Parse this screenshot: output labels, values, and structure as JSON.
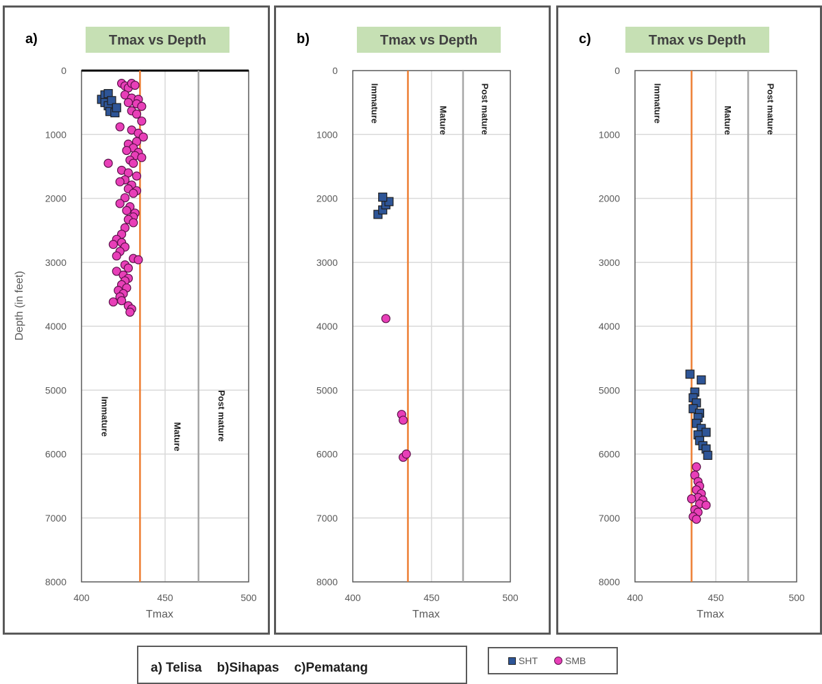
{
  "colors": {
    "sht": "#2e5597",
    "smb": "#e83fb8",
    "threshold": "#ed7d31",
    "post_mature_line": "#a6a6a6",
    "grid": "#d9d9d9",
    "title_bg": "#c6e0b4"
  },
  "legend": {
    "items": [
      {
        "label": "SHT",
        "marker": "square",
        "color": "#2e5597"
      },
      {
        "label": "SMB",
        "marker": "circle",
        "color": "#e83fb8"
      }
    ]
  },
  "formations": {
    "a": "a) Telisa",
    "b": "b)Sihapas",
    "c": "c)Pematang"
  },
  "chart_data": [
    {
      "panel_label": "a)",
      "type": "scatter",
      "title": "Tmax vs Depth",
      "xlabel": "Tmax",
      "ylabel": "Depth (in feet)",
      "xlim": [
        400,
        500
      ],
      "ylim": [
        0,
        8000
      ],
      "y_inverted": true,
      "x_ticks": [
        "400",
        "450",
        "500"
      ],
      "y_ticks": [
        "0",
        "1000",
        "2000",
        "3000",
        "4000",
        "5000",
        "6000",
        "7000",
        "8000"
      ],
      "grid": true,
      "reference_lines": [
        {
          "x": 435,
          "style": "orange"
        },
        {
          "x": 470,
          "style": "gray"
        }
      ],
      "zone_labels": [
        "Immature",
        "Mature",
        "Post mature"
      ],
      "zone_label_position": "bottom",
      "series": [
        {
          "name": "SHT",
          "marker": "square",
          "points": [
            [
              412,
              450
            ],
            [
              414,
              380
            ],
            [
              414,
              500
            ],
            [
              416,
              360
            ],
            [
              416,
              550
            ],
            [
              417,
              640
            ],
            [
              418,
              470
            ],
            [
              420,
              660
            ],
            [
              421,
              580
            ]
          ]
        },
        {
          "name": "SMB",
          "marker": "circle",
          "points": [
            [
              424,
              200
            ],
            [
              426,
              240
            ],
            [
              428,
              270
            ],
            [
              430,
              200
            ],
            [
              432,
              230
            ],
            [
              426,
              380
            ],
            [
              430,
              430
            ],
            [
              434,
              450
            ],
            [
              428,
              500
            ],
            [
              433,
              520
            ],
            [
              436,
              560
            ],
            [
              430,
              630
            ],
            [
              433,
              680
            ],
            [
              436,
              790
            ],
            [
              423,
              880
            ],
            [
              430,
              930
            ],
            [
              434,
              980
            ],
            [
              437,
              1040
            ],
            [
              433,
              1110
            ],
            [
              428,
              1150
            ],
            [
              431,
              1210
            ],
            [
              427,
              1250
            ],
            [
              434,
              1280
            ],
            [
              432,
              1330
            ],
            [
              436,
              1360
            ],
            [
              429,
              1400
            ],
            [
              431,
              1450
            ],
            [
              416,
              1450
            ],
            [
              424,
              1560
            ],
            [
              428,
              1600
            ],
            [
              433,
              1650
            ],
            [
              426,
              1710
            ],
            [
              423,
              1740
            ],
            [
              430,
              1790
            ],
            [
              428,
              1850
            ],
            [
              433,
              1880
            ],
            [
              431,
              1920
            ],
            [
              426,
              1990
            ],
            [
              423,
              2080
            ],
            [
              429,
              2130
            ],
            [
              427,
              2190
            ],
            [
              432,
              2230
            ],
            [
              431,
              2290
            ],
            [
              428,
              2330
            ],
            [
              431,
              2380
            ],
            [
              426,
              2460
            ],
            [
              424,
              2560
            ],
            [
              421,
              2640
            ],
            [
              424,
              2690
            ],
            [
              419,
              2720
            ],
            [
              426,
              2760
            ],
            [
              423,
              2830
            ],
            [
              421,
              2900
            ],
            [
              431,
              2940
            ],
            [
              434,
              2960
            ],
            [
              426,
              3040
            ],
            [
              428,
              3090
            ],
            [
              421,
              3140
            ],
            [
              425,
              3200
            ],
            [
              428,
              3250
            ],
            [
              426,
              3290
            ],
            [
              424,
              3350
            ],
            [
              427,
              3400
            ],
            [
              422,
              3440
            ],
            [
              425,
              3490
            ],
            [
              423,
              3540
            ],
            [
              419,
              3620
            ],
            [
              424,
              3600
            ],
            [
              428,
              3680
            ],
            [
              430,
              3730
            ],
            [
              429,
              3780
            ]
          ]
        }
      ]
    },
    {
      "panel_label": "b)",
      "type": "scatter",
      "title": "Tmax vs Depth",
      "xlabel": "Tmax",
      "ylabel": "",
      "xlim": [
        400,
        500
      ],
      "ylim": [
        0,
        8000
      ],
      "y_inverted": true,
      "x_ticks": [
        "400",
        "450",
        "500"
      ],
      "y_ticks": [
        "0",
        "1000",
        "2000",
        "3000",
        "4000",
        "5000",
        "6000",
        "7000",
        "8000"
      ],
      "grid": true,
      "reference_lines": [
        {
          "x": 435,
          "style": "orange"
        },
        {
          "x": 470,
          "style": "gray"
        }
      ],
      "zone_labels": [
        "Immature",
        "Mature",
        "Post mature"
      ],
      "zone_label_position": "top",
      "series": [
        {
          "name": "SHT",
          "marker": "square",
          "points": [
            [
              416,
              2250
            ],
            [
              419,
              2180
            ],
            [
              421,
              2100
            ],
            [
              423,
              2050
            ],
            [
              419,
              1980
            ]
          ]
        },
        {
          "name": "SMB",
          "marker": "circle",
          "points": [
            [
              421,
              3880
            ],
            [
              431,
              5380
            ],
            [
              432,
              5470
            ],
            [
              432,
              6050
            ],
            [
              434,
              6000
            ]
          ]
        }
      ]
    },
    {
      "panel_label": "c)",
      "type": "scatter",
      "title": "Tmax vs Depth",
      "xlabel": "Tmax",
      "ylabel": "",
      "xlim": [
        400,
        500
      ],
      "ylim": [
        0,
        8000
      ],
      "y_inverted": true,
      "x_ticks": [
        "400",
        "450",
        "500"
      ],
      "y_ticks": [
        "0",
        "1000",
        "2000",
        "3000",
        "4000",
        "5000",
        "6000",
        "7000",
        "8000"
      ],
      "grid": true,
      "reference_lines": [
        {
          "x": 435,
          "style": "orange"
        },
        {
          "x": 470,
          "style": "gray"
        }
      ],
      "zone_labels": [
        "Immature",
        "Mature",
        "Post mature"
      ],
      "zone_label_position": "top",
      "series": [
        {
          "name": "SHT",
          "marker": "square",
          "points": [
            [
              434,
              4750
            ],
            [
              441,
              4840
            ],
            [
              437,
              5030
            ],
            [
              436,
              5120
            ],
            [
              438,
              5200
            ],
            [
              436,
              5290
            ],
            [
              440,
              5360
            ],
            [
              439,
              5430
            ],
            [
              438,
              5520
            ],
            [
              441,
              5600
            ],
            [
              444,
              5660
            ],
            [
              439,
              5700
            ],
            [
              440,
              5790
            ],
            [
              442,
              5870
            ],
            [
              444,
              5920
            ],
            [
              445,
              6020
            ]
          ]
        },
        {
          "name": "SMB",
          "marker": "circle",
          "points": [
            [
              438,
              6200
            ],
            [
              437,
              6330
            ],
            [
              439,
              6430
            ],
            [
              440,
              6500
            ],
            [
              438,
              6560
            ],
            [
              441,
              6620
            ],
            [
              439,
              6680
            ],
            [
              435,
              6700
            ],
            [
              442,
              6720
            ],
            [
              440,
              6780
            ],
            [
              444,
              6800
            ],
            [
              437,
              6870
            ],
            [
              439,
              6910
            ],
            [
              436,
              6980
            ],
            [
              438,
              7020
            ]
          ]
        }
      ]
    }
  ]
}
